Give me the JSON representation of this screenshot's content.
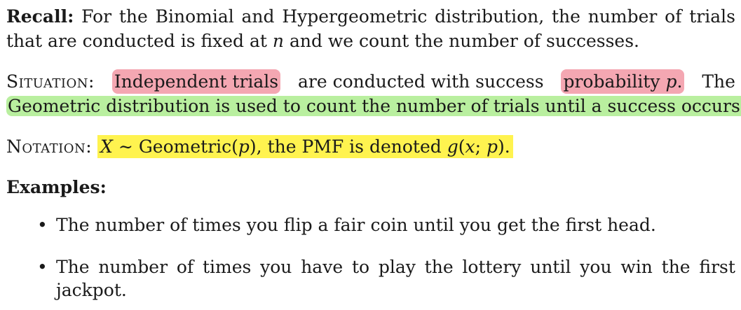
{
  "recall": {
    "label": "Recall:",
    "line1_words": [
      "For",
      "the",
      "Binomial",
      "and",
      "Hypergeometric",
      "distribution,",
      "the",
      "number",
      "of",
      "trials"
    ],
    "line2_pre": "that are conducted is fixed at ",
    "line2_var": "n",
    "line2_post": " and we count the number of successes."
  },
  "situation": {
    "label": "Situation:",
    "highlight1": "Independent trials",
    "mid1": "are conducted with success",
    "highlight2_text": "probability ",
    "highlight2_var": "p",
    "highlight2_end": ".",
    "tail": "The",
    "green_line": "Geometric distribution is used to count the number of trials until a success occurs."
  },
  "notation": {
    "label": "Notation:",
    "var": "X",
    "tilde": " ∼ ",
    "dist_pre": " Geometric(",
    "dist_var": "p",
    "dist_post": "), the PMF is denoted ",
    "pmf_g": "g",
    "pmf_open": "(",
    "pmf_x": "x",
    "pmf_semi": "; ",
    "pmf_p": "p",
    "pmf_close": ")."
  },
  "examples": {
    "label": "Examples:",
    "bullet": "•",
    "item1": "The number of times you flip a fair coin until you get the first head.",
    "item2_line1_words": [
      "The",
      "number",
      "of",
      "times",
      "you",
      "have",
      "to",
      "play",
      "the",
      "lottery",
      "until",
      "you",
      "win",
      "the",
      "first"
    ],
    "item2_line2": "jackpot."
  },
  "colors": {
    "pink_highlight": "#f4a7b2",
    "green_highlight": "#b9ef9f",
    "yellow_highlight": "#fff34f"
  }
}
